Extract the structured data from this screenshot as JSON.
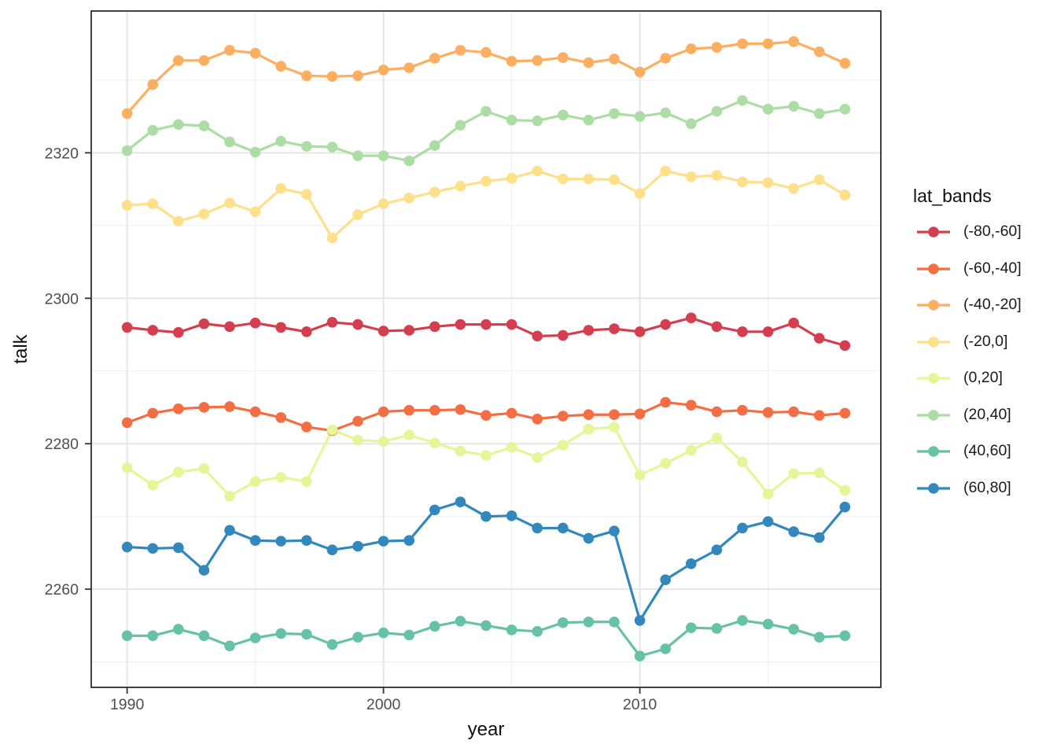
{
  "figure": {
    "background": "#ffffff",
    "panel_border_color": "#2e2e2e",
    "grid_major_color": "#e6e6e6",
    "grid_minor_color": "#f0f0f0",
    "tick_color": "#333333",
    "tick_label_color": "#4d4d4d"
  },
  "chart_data": {
    "type": "line",
    "title": "",
    "xlabel": "year",
    "ylabel": "talk",
    "grid": true,
    "xlim": [
      1988.6,
      2019.4
    ],
    "ylim": [
      2246.5,
      2339.5
    ],
    "x_major_ticks": [
      1990,
      2000,
      2010
    ],
    "x_tick_labels": [
      "1990",
      "2000",
      "2010"
    ],
    "x_minor_ticks": [
      1995,
      2005,
      2015
    ],
    "y_major_ticks": [
      2260,
      2280,
      2300,
      2320
    ],
    "y_tick_labels": [
      "2260",
      "2280",
      "2300",
      "2320"
    ],
    "y_minor_ticks": [
      2250,
      2270,
      2290,
      2310,
      2330
    ],
    "legend": {
      "title": "lat_bands",
      "position": "right"
    },
    "x": [
      1990,
      1991,
      1992,
      1993,
      1994,
      1995,
      1996,
      1997,
      1998,
      1999,
      2000,
      2001,
      2002,
      2003,
      2004,
      2005,
      2006,
      2007,
      2008,
      2009,
      2010,
      2011,
      2012,
      2013,
      2014,
      2015,
      2016,
      2017,
      2018
    ],
    "series": [
      {
        "name": "(-80,-60]",
        "color": "#D53E4F",
        "values": [
          2296.0,
          2295.6,
          2295.3,
          2296.5,
          2296.1,
          2296.6,
          2296.0,
          2295.4,
          2296.7,
          2296.4,
          2295.5,
          2295.6,
          2296.1,
          2296.4,
          2296.4,
          2296.4,
          2294.8,
          2294.9,
          2295.6,
          2295.8,
          2295.4,
          2296.4,
          2297.3,
          2296.1,
          2295.4,
          2295.4,
          2296.6,
          2294.5,
          2293.5
        ]
      },
      {
        "name": "(-60,-40]",
        "color": "#F46D43",
        "values": [
          2282.9,
          2284.2,
          2284.8,
          2285.0,
          2285.1,
          2284.4,
          2283.6,
          2282.3,
          2281.8,
          2283.1,
          2284.4,
          2284.6,
          2284.6,
          2284.7,
          2283.9,
          2284.2,
          2283.4,
          2283.8,
          2284.0,
          2284.0,
          2284.1,
          2285.7,
          2285.3,
          2284.4,
          2284.6,
          2284.3,
          2284.4,
          2283.9,
          2284.2
        ]
      },
      {
        "name": "(-40,-20]",
        "color": "#FDAE61",
        "values": [
          2325.4,
          2329.4,
          2332.7,
          2332.7,
          2334.1,
          2333.7,
          2331.9,
          2330.6,
          2330.5,
          2330.6,
          2331.4,
          2331.7,
          2333.0,
          2334.1,
          2333.8,
          2332.6,
          2332.7,
          2333.1,
          2332.4,
          2332.9,
          2331.1,
          2333.0,
          2334.3,
          2334.5,
          2335.0,
          2335.0,
          2335.3,
          2333.9,
          2332.3
        ]
      },
      {
        "name": "(-20,0]",
        "color": "#FEE08B",
        "values": [
          2312.8,
          2313.0,
          2310.6,
          2311.6,
          2313.1,
          2311.9,
          2315.1,
          2314.3,
          2308.3,
          2311.5,
          2313.0,
          2313.8,
          2314.6,
          2315.4,
          2316.1,
          2316.5,
          2317.5,
          2316.4,
          2316.4,
          2316.3,
          2314.4,
          2317.5,
          2316.7,
          2316.9,
          2316.0,
          2315.9,
          2315.1,
          2316.3,
          2314.2
        ]
      },
      {
        "name": "(0,20]",
        "color": "#E6F598",
        "values": [
          2276.7,
          2274.3,
          2276.1,
          2276.6,
          2272.8,
          2274.8,
          2275.4,
          2274.8,
          2281.9,
          2280.5,
          2280.3,
          2281.2,
          2280.1,
          2279.0,
          2278.4,
          2279.5,
          2278.1,
          2279.8,
          2282.0,
          2282.3,
          2275.7,
          2277.3,
          2279.1,
          2280.8,
          2277.5,
          2273.1,
          2275.9,
          2276.0,
          2273.6
        ]
      },
      {
        "name": "(20,40]",
        "color": "#ABDDA4",
        "values": [
          2320.3,
          2323.1,
          2323.9,
          2323.7,
          2321.5,
          2320.1,
          2321.6,
          2320.9,
          2320.8,
          2319.6,
          2319.6,
          2318.9,
          2321.0,
          2323.8,
          2325.7,
          2324.5,
          2324.4,
          2325.2,
          2324.5,
          2325.4,
          2325.0,
          2325.5,
          2324.0,
          2325.7,
          2327.2,
          2326.0,
          2326.4,
          2325.4,
          2326.0
        ]
      },
      {
        "name": "(40,60]",
        "color": "#66C2A5",
        "values": [
          2253.6,
          2253.6,
          2254.5,
          2253.6,
          2252.2,
          2253.3,
          2253.9,
          2253.8,
          2252.4,
          2253.4,
          2254.0,
          2253.7,
          2254.9,
          2255.6,
          2255.0,
          2254.4,
          2254.2,
          2255.4,
          2255.5,
          2255.5,
          2250.8,
          2251.8,
          2254.7,
          2254.6,
          2255.7,
          2255.2,
          2254.5,
          2253.4,
          2253.6
        ]
      },
      {
        "name": "(60,80]",
        "color": "#3288BD",
        "values": [
          2265.8,
          2265.6,
          2265.7,
          2262.6,
          2268.1,
          2266.7,
          2266.6,
          2266.7,
          2265.4,
          2265.9,
          2266.6,
          2266.7,
          2270.9,
          2272.0,
          2270.0,
          2270.1,
          2268.4,
          2268.4,
          2267.0,
          2268.0,
          2255.7,
          2261.3,
          2263.5,
          2265.4,
          2268.4,
          2269.3,
          2267.9,
          2267.1,
          2271.3
        ]
      }
    ]
  }
}
